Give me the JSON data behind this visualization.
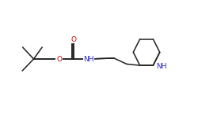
{
  "bg_color": "#ffffff",
  "bond_color": "#202020",
  "N_color": "#2020cc",
  "O_color": "#cc0000",
  "font_size_atom": 6.5,
  "line_width": 1.1,
  "fig_width": 2.5,
  "fig_height": 1.5,
  "dpi": 100,
  "xlim": [
    0.0,
    1.0
  ],
  "ylim": [
    0.15,
    0.85
  ]
}
